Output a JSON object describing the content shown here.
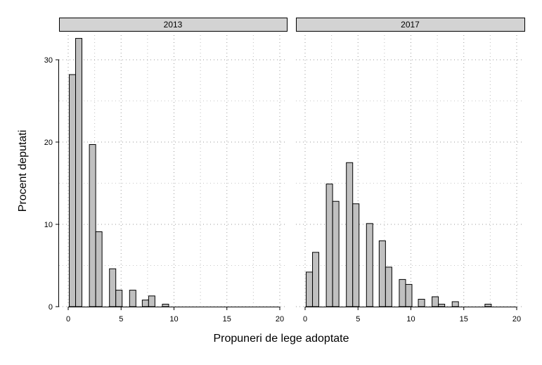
{
  "chart_data": {
    "type": "bar",
    "ylabel": "Procent deputati",
    "xlabel": "Propuneri de lege adoptate",
    "xlim": [
      -1,
      20
    ],
    "ylim": [
      0,
      33
    ],
    "xticks": [
      0,
      5,
      10,
      15,
      20
    ],
    "yticks": [
      0,
      10,
      20,
      30
    ],
    "grid": true,
    "bar_color": "#c0c0c0",
    "strip_color": "#d3d3d3",
    "panels": [
      {
        "strip": "2013",
        "bars": [
          {
            "x": 0.4,
            "value": 28.2
          },
          {
            "x": 1.0,
            "value": 32.6
          },
          {
            "x": 2.3,
            "value": 19.7
          },
          {
            "x": 2.9,
            "value": 9.1
          },
          {
            "x": 4.2,
            "value": 4.6
          },
          {
            "x": 4.8,
            "value": 2.0
          },
          {
            "x": 6.1,
            "value": 2.0
          },
          {
            "x": 7.3,
            "value": 0.8
          },
          {
            "x": 7.9,
            "value": 1.3
          },
          {
            "x": 9.2,
            "value": 0.3
          }
        ]
      },
      {
        "strip": "2017",
        "bars": [
          {
            "x": 0.4,
            "value": 4.2
          },
          {
            "x": 1.0,
            "value": 6.6
          },
          {
            "x": 2.3,
            "value": 14.9
          },
          {
            "x": 2.9,
            "value": 12.8
          },
          {
            "x": 4.2,
            "value": 17.5
          },
          {
            "x": 4.8,
            "value": 12.5
          },
          {
            "x": 6.1,
            "value": 10.1
          },
          {
            "x": 7.3,
            "value": 8.0
          },
          {
            "x": 7.9,
            "value": 4.8
          },
          {
            "x": 9.2,
            "value": 3.3
          },
          {
            "x": 9.8,
            "value": 2.7
          },
          {
            "x": 11.0,
            "value": 0.9
          },
          {
            "x": 12.3,
            "value": 1.2
          },
          {
            "x": 12.9,
            "value": 0.3
          },
          {
            "x": 14.2,
            "value": 0.6
          },
          {
            "x": 17.3,
            "value": 0.3
          }
        ]
      }
    ]
  }
}
